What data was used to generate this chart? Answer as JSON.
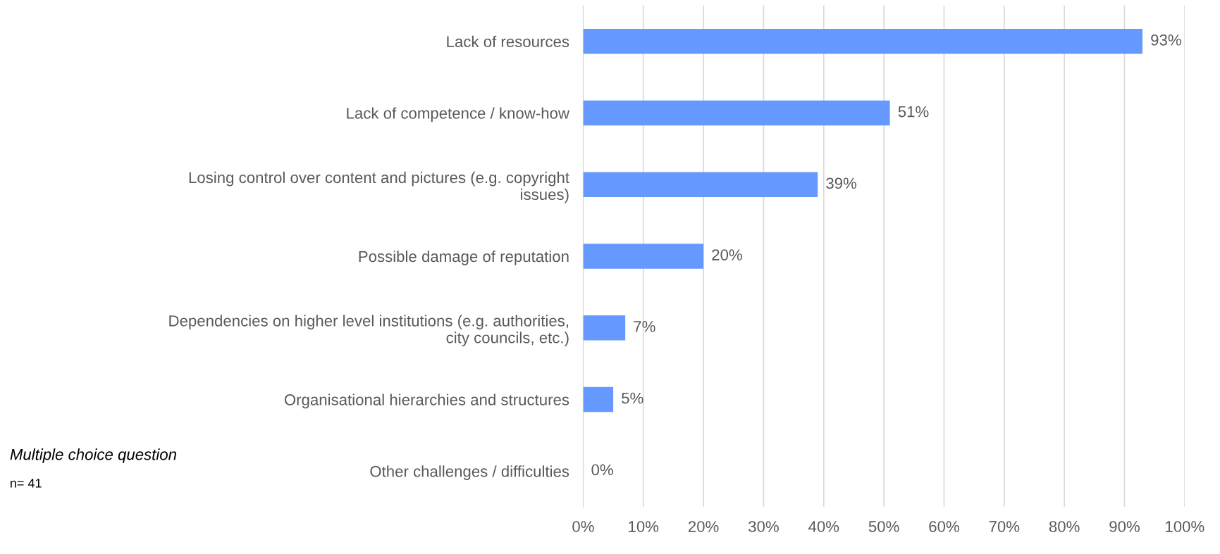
{
  "chart_data": {
    "type": "bar",
    "orientation": "horizontal",
    "categories": [
      "Lack of resources",
      "Lack of competence / know-how",
      "Losing control over content and pictures (e.g. copyright\nissues)",
      "Possible damage of reputation",
      "Dependencies on higher level institutions (e.g. authorities,\ncity councils, etc.)",
      "Organisational hierarchies and structures",
      "Other challenges / difficulties"
    ],
    "values": [
      93,
      51,
      39,
      20,
      7,
      5,
      0
    ],
    "value_labels": [
      "93%",
      "51%",
      "39%",
      "20%",
      "7%",
      "5%",
      "0%"
    ],
    "color": "#6699ff",
    "xlim": [
      0,
      100
    ],
    "xticks": [
      {
        "value": 0,
        "label": "0%"
      },
      {
        "value": 10,
        "label": "10%"
      },
      {
        "value": 20,
        "label": "20%"
      },
      {
        "value": 30,
        "label": "30%"
      },
      {
        "value": 40,
        "label": "40%"
      },
      {
        "value": 50,
        "label": "50%"
      },
      {
        "value": 60,
        "label": "60%"
      },
      {
        "value": 70,
        "label": "70%"
      },
      {
        "value": 80,
        "label": "80%"
      },
      {
        "value": 90,
        "label": "90%"
      },
      {
        "value": 100,
        "label": "100%"
      }
    ],
    "grid": "x",
    "annotations": [
      "Multiple choice question",
      "n= 41"
    ]
  }
}
